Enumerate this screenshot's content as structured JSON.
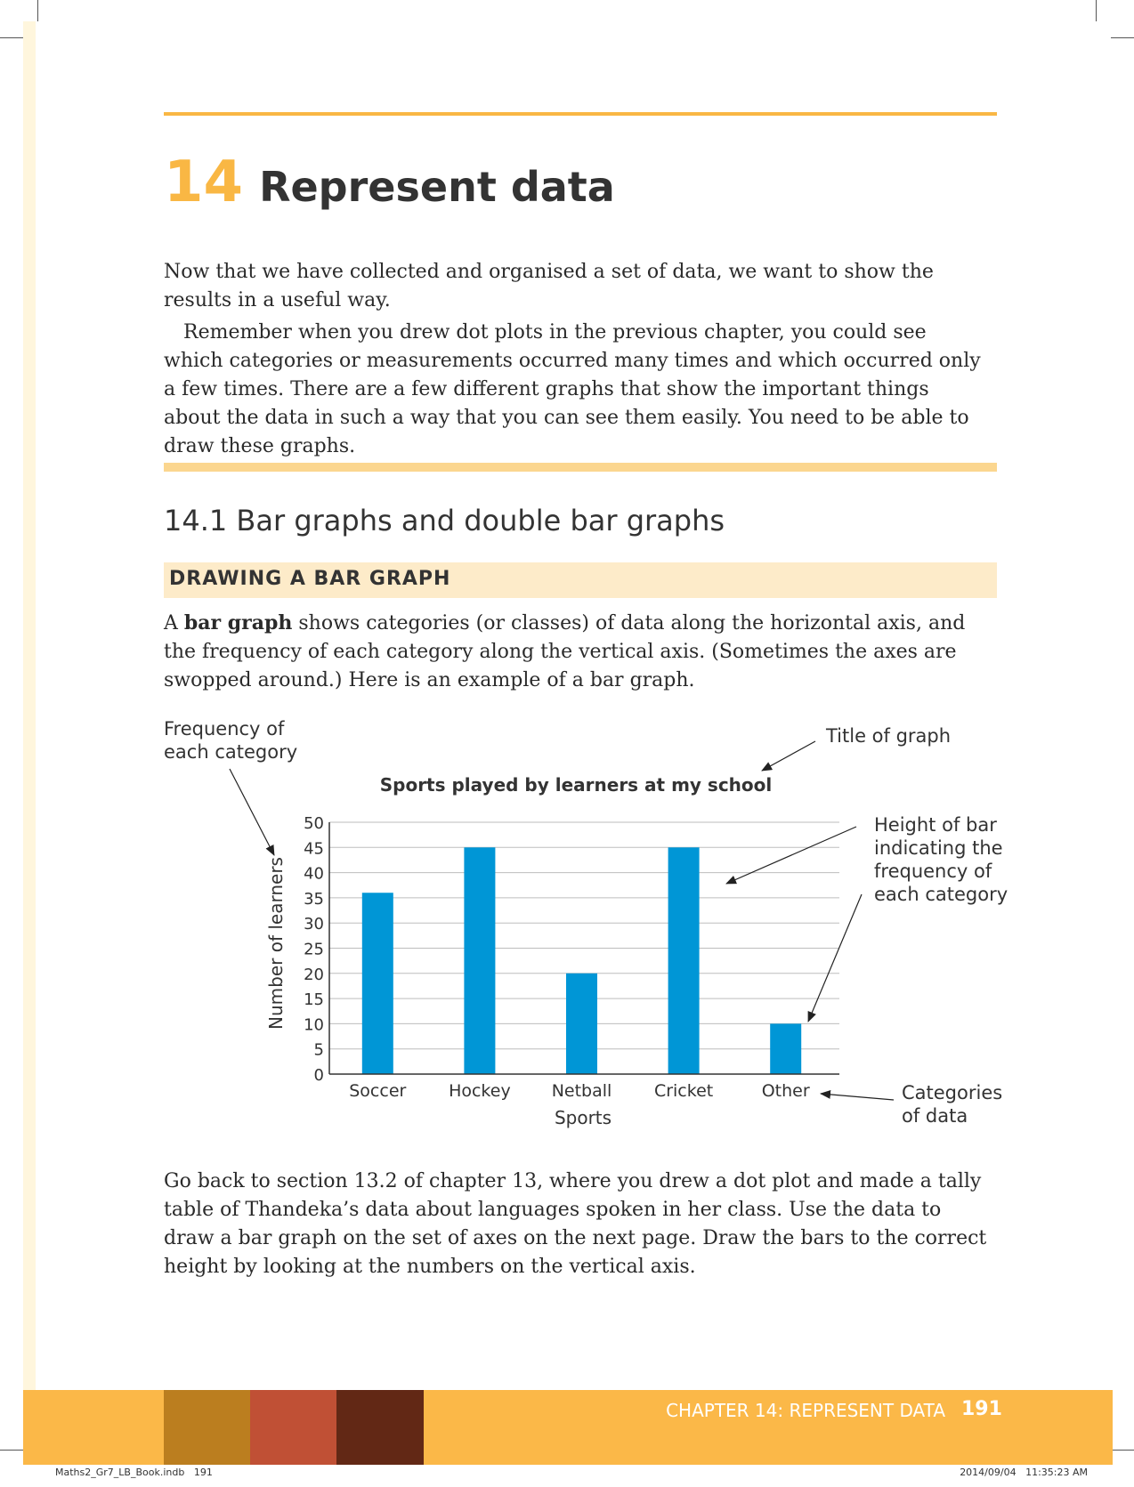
{
  "chapter": {
    "number": "14",
    "title": "Represent data"
  },
  "intro": {
    "p1": "Now that we have collected and organised a set of data, we want to show the results in a useful way.",
    "p2": "Remember when you drew dot plots in the previous chapter, you could see which categories or measurements occurred many times and which occurred only a few times. There are a few different graphs that show the important things about the data in such a way that you can see them easily. You need to be able to draw these graphs."
  },
  "section": {
    "title": "14.1  Bar graphs and double bar graphs",
    "subtitle": "DRAWING A BAR GRAPH"
  },
  "definition": {
    "prefix": "A ",
    "term": "bar graph",
    "rest": " shows categories (or classes) of data along the horizontal axis, and the frequency of each category along the vertical axis. (Sometimes the axes are swopped around.) Here is an example of a bar graph."
  },
  "annotations": {
    "frequency": [
      "Frequency of",
      "each category"
    ],
    "title_of_graph": "Title of graph",
    "height_of_bar": [
      "Height of bar",
      "indicating the",
      "frequency of",
      "each category"
    ],
    "categories_of_data": [
      "Categories",
      "of data"
    ]
  },
  "chart_data": {
    "type": "bar",
    "title": "Sports played by learners at my school",
    "xlabel": "Sports",
    "ylabel": "Number of learners",
    "categories": [
      "Soccer",
      "Hockey",
      "Netball",
      "Cricket",
      "Other"
    ],
    "values": [
      36,
      45,
      20,
      45,
      10
    ],
    "ylim": [
      0,
      50
    ],
    "yticks": [
      0,
      5,
      10,
      15,
      20,
      25,
      30,
      35,
      40,
      45,
      50
    ],
    "grid": true,
    "bar_color": "#0096d6"
  },
  "closing": "Go back to section 13.2 of chapter 13, where you drew a dot plot and made a tally table of Thandeka’s data about languages spoken in her class. Use the data to draw a bar graph on the set of axes on the next page. Draw the bars to the correct height by looking at the numbers on the vertical axis.",
  "footer": {
    "chapter_label": "CHAPTER 14: REPRESENT DATA",
    "page_number": "191"
  },
  "print_info": {
    "file": "Maths2_Gr7_LB_Book.indb   191",
    "timestamp": "2014/09/04   11:35:23 AM"
  },
  "colors": {
    "accent": "#f9b744",
    "block1": "#bb7e1f",
    "block2": "#c05035",
    "block3": "#622815"
  }
}
